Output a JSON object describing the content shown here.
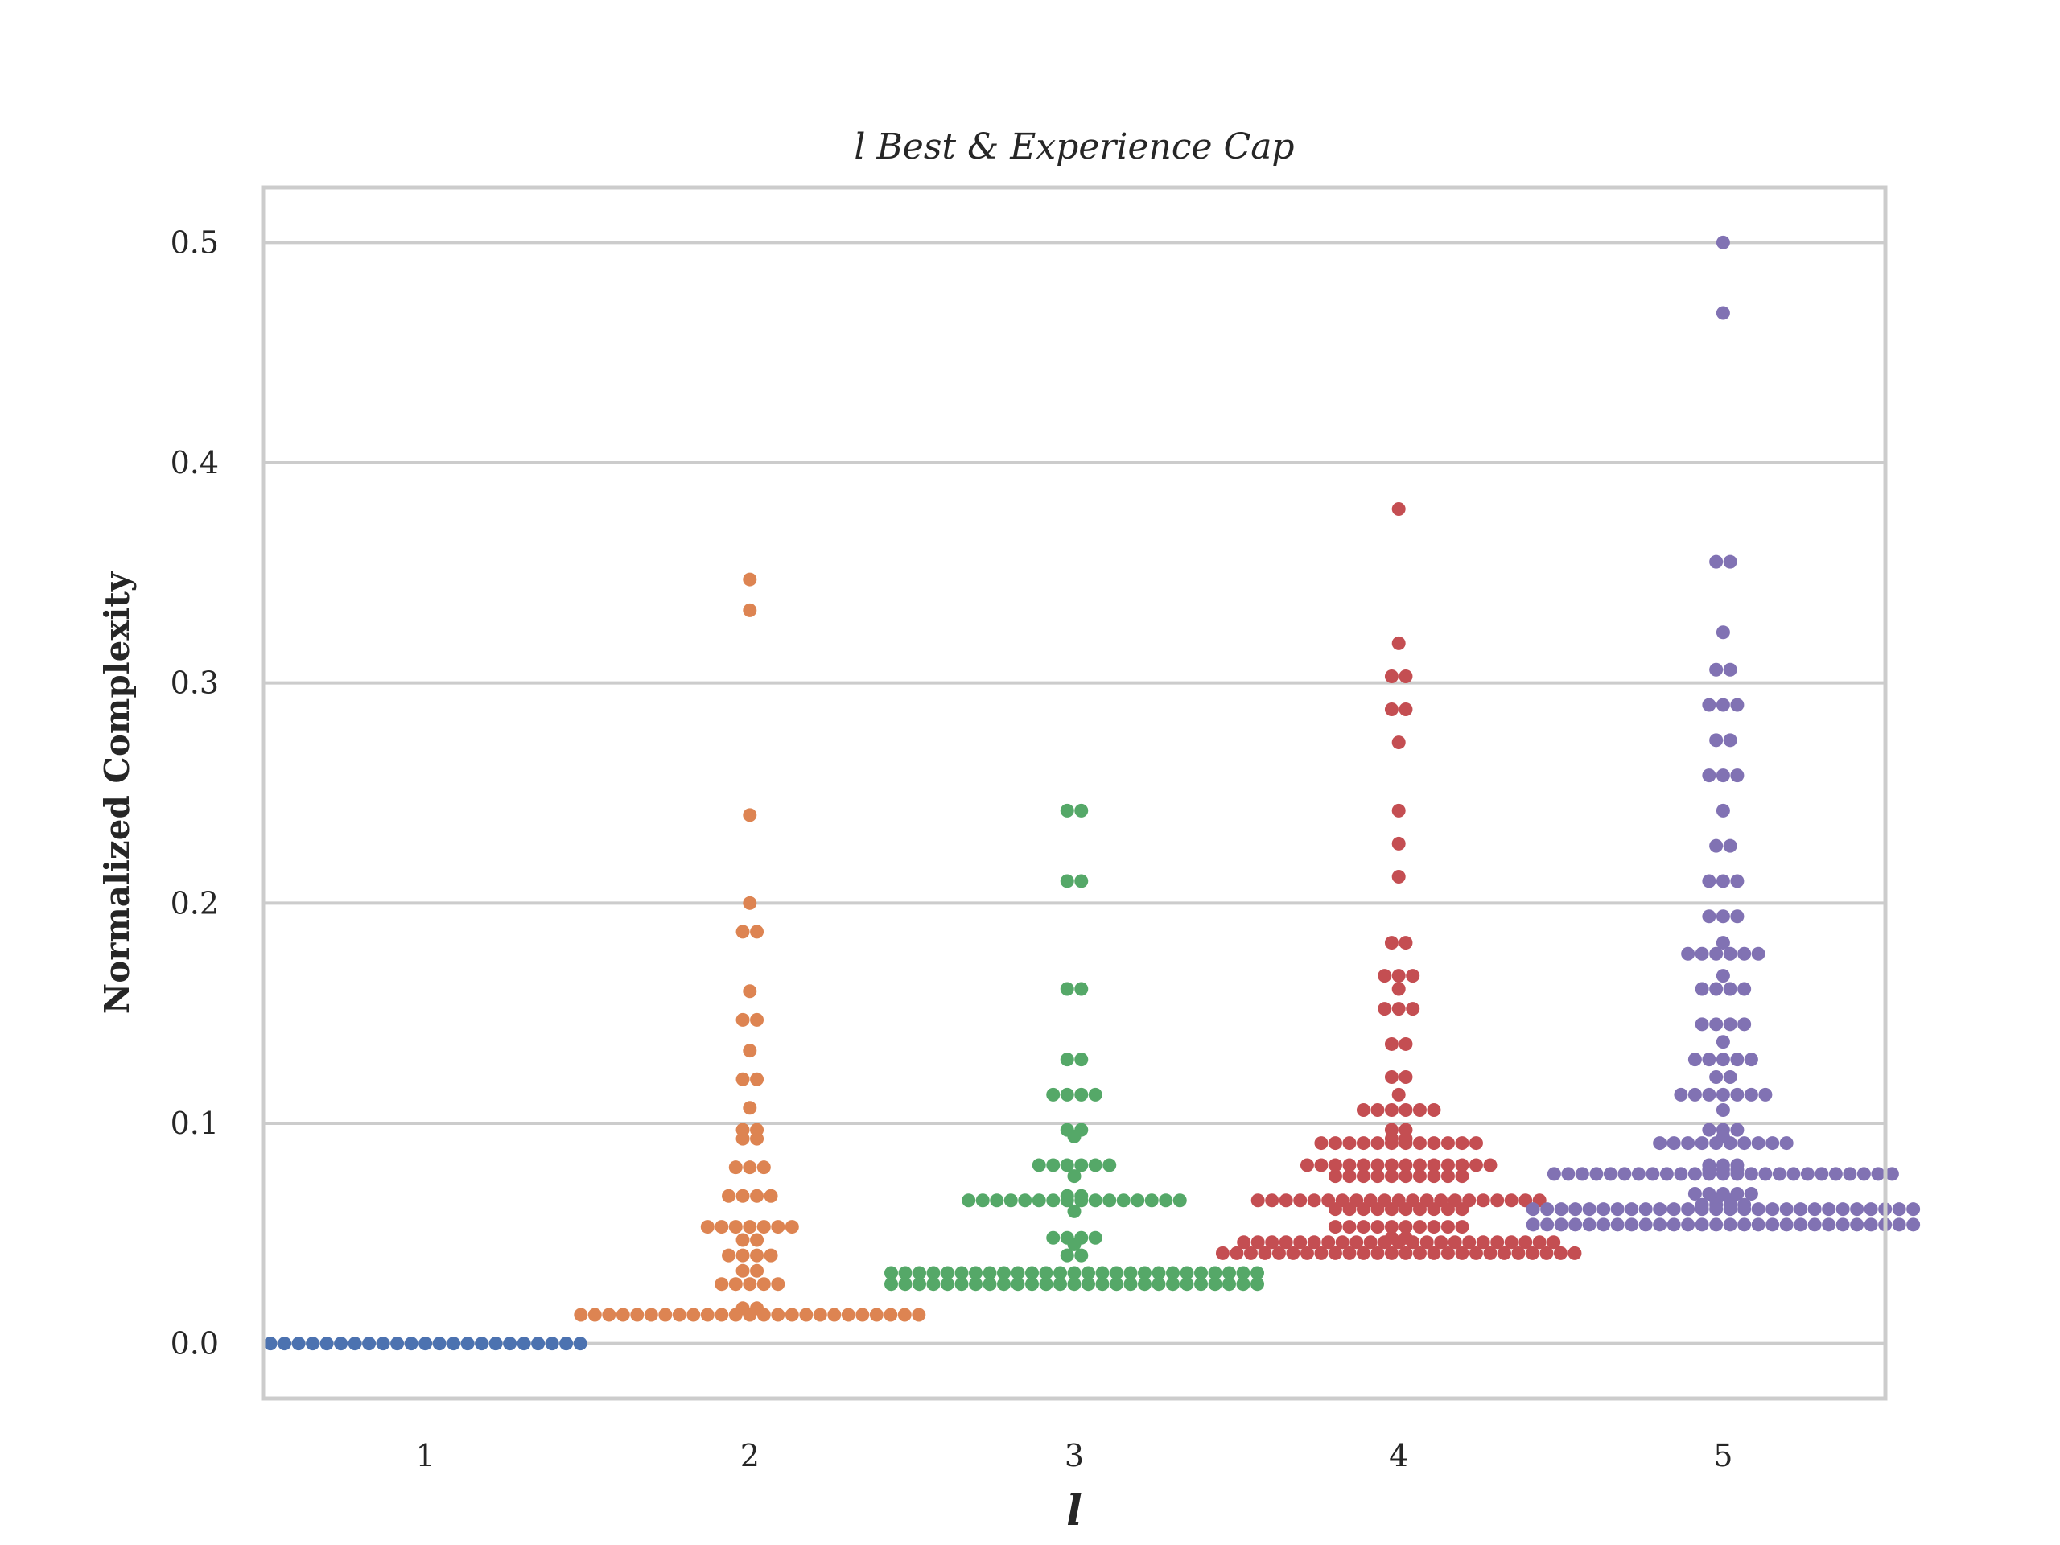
{
  "chart_data": {
    "type": "scatter",
    "subtype": "swarm",
    "title": "l Best & Experience Cap",
    "xlabel": "l",
    "ylabel": "Normalized Complexity",
    "categories": [
      "1",
      "2",
      "3",
      "4",
      "5"
    ],
    "ylim": [
      -0.025,
      0.525
    ],
    "yticks": [
      0.0,
      0.1,
      0.2,
      0.3,
      0.4,
      0.5
    ],
    "ytick_labels": [
      "0.0",
      "0.1",
      "0.2",
      "0.3",
      "0.4",
      "0.5"
    ],
    "grid": true,
    "legend": "none",
    "series": [
      {
        "color": "#4c72b0",
        "values": [
          0,
          0,
          0,
          0,
          0,
          0,
          0,
          0,
          0,
          0,
          0,
          0,
          0,
          0,
          0,
          0,
          0,
          0,
          0,
          0,
          0,
          0,
          0
        ]
      },
      {
        "color": "#dd8452",
        "values": [
          0.347,
          0.333,
          0.24,
          0.2,
          0.187,
          0.187,
          0.16,
          0.147,
          0.147,
          0.133,
          0.12,
          0.12,
          0.107,
          0.097,
          0.097,
          0.093,
          0.093,
          0.08,
          0.08,
          0.08,
          0.067,
          0.067,
          0.067,
          0.067,
          0.053,
          0.053,
          0.053,
          0.053,
          0.053,
          0.053,
          0.053,
          0.047,
          0.047,
          0.04,
          0.04,
          0.04,
          0.04,
          0.033,
          0.033,
          0.027,
          0.027,
          0.027,
          0.027,
          0.027,
          0.013,
          0.013,
          0.013,
          0.013,
          0.013,
          0.013,
          0.013,
          0.013,
          0.013,
          0.013,
          0.013,
          0.013,
          0.013,
          0.013,
          0.013,
          0.013,
          0.013,
          0.013,
          0.013,
          0.013,
          0.013,
          0.013,
          0.013,
          0.013,
          0.013,
          0.016,
          0.016
        ]
      },
      {
        "color": "#55a868",
        "values": [
          0.242,
          0.242,
          0.21,
          0.21,
          0.161,
          0.161,
          0.129,
          0.129,
          0.113,
          0.113,
          0.113,
          0.113,
          0.097,
          0.097,
          0.094,
          0.081,
          0.081,
          0.081,
          0.081,
          0.081,
          0.081,
          0.076,
          0.067,
          0.065,
          0.065,
          0.065,
          0.065,
          0.065,
          0.065,
          0.065,
          0.065,
          0.065,
          0.065,
          0.065,
          0.065,
          0.065,
          0.065,
          0.065,
          0.065,
          0.067,
          0.06,
          0.048,
          0.048,
          0.048,
          0.048,
          0.045,
          0.04,
          0.04,
          0.032,
          0.032,
          0.032,
          0.032,
          0.032,
          0.032,
          0.032,
          0.032,
          0.032,
          0.032,
          0.032,
          0.032,
          0.032,
          0.032,
          0.032,
          0.032,
          0.032,
          0.032,
          0.032,
          0.032,
          0.032,
          0.032,
          0.032,
          0.032,
          0.032,
          0.032,
          0.032,
          0.027,
          0.027,
          0.027,
          0.027,
          0.027,
          0.027,
          0.027,
          0.027,
          0.027,
          0.027,
          0.027,
          0.027,
          0.027,
          0.027,
          0.027,
          0.027,
          0.027,
          0.027,
          0.027,
          0.027,
          0.027,
          0.027,
          0.027,
          0.027,
          0.027,
          0.027,
          0.027
        ]
      },
      {
        "color": "#c44e52",
        "values": [
          0.379,
          0.318,
          0.303,
          0.303,
          0.288,
          0.288,
          0.273,
          0.242,
          0.227,
          0.212,
          0.182,
          0.182,
          0.167,
          0.167,
          0.167,
          0.161,
          0.152,
          0.152,
          0.152,
          0.136,
          0.136,
          0.121,
          0.121,
          0.113,
          0.106,
          0.106,
          0.106,
          0.106,
          0.106,
          0.106,
          0.097,
          0.097,
          0.093,
          0.091,
          0.091,
          0.091,
          0.091,
          0.091,
          0.091,
          0.091,
          0.091,
          0.091,
          0.091,
          0.091,
          0.091,
          0.093,
          0.081,
          0.081,
          0.081,
          0.081,
          0.081,
          0.081,
          0.081,
          0.081,
          0.081,
          0.081,
          0.081,
          0.081,
          0.081,
          0.081,
          0.076,
          0.076,
          0.076,
          0.076,
          0.076,
          0.076,
          0.076,
          0.076,
          0.076,
          0.076,
          0.065,
          0.065,
          0.065,
          0.065,
          0.065,
          0.065,
          0.065,
          0.065,
          0.065,
          0.065,
          0.065,
          0.065,
          0.065,
          0.065,
          0.065,
          0.065,
          0.065,
          0.065,
          0.065,
          0.065,
          0.065,
          0.061,
          0.061,
          0.061,
          0.061,
          0.061,
          0.061,
          0.061,
          0.061,
          0.061,
          0.061,
          0.053,
          0.053,
          0.053,
          0.053,
          0.053,
          0.053,
          0.053,
          0.053,
          0.053,
          0.053,
          0.046,
          0.046,
          0.046,
          0.046,
          0.046,
          0.046,
          0.046,
          0.046,
          0.046,
          0.046,
          0.046,
          0.046,
          0.046,
          0.046,
          0.046,
          0.046,
          0.046,
          0.046,
          0.046,
          0.046,
          0.046,
          0.046,
          0.046,
          0.048,
          0.048,
          0.041,
          0.041,
          0.041,
          0.041,
          0.041,
          0.041,
          0.041,
          0.041,
          0.041,
          0.041,
          0.041,
          0.041,
          0.041,
          0.041,
          0.041,
          0.041,
          0.041,
          0.041,
          0.041,
          0.041,
          0.041,
          0.041,
          0.041,
          0.041,
          0.041,
          0.041
        ]
      },
      {
        "color": "#8172b3",
        "values": [
          0.5,
          0.468,
          0.355,
          0.355,
          0.323,
          0.306,
          0.306,
          0.29,
          0.29,
          0.29,
          0.274,
          0.274,
          0.258,
          0.258,
          0.258,
          0.242,
          0.226,
          0.226,
          0.21,
          0.21,
          0.21,
          0.194,
          0.194,
          0.194,
          0.182,
          0.177,
          0.177,
          0.177,
          0.177,
          0.177,
          0.177,
          0.167,
          0.161,
          0.161,
          0.161,
          0.161,
          0.145,
          0.145,
          0.145,
          0.145,
          0.137,
          0.129,
          0.129,
          0.129,
          0.129,
          0.129,
          0.121,
          0.121,
          0.113,
          0.113,
          0.113,
          0.113,
          0.113,
          0.113,
          0.113,
          0.106,
          0.097,
          0.097,
          0.097,
          0.094,
          0.091,
          0.091,
          0.091,
          0.091,
          0.091,
          0.091,
          0.091,
          0.091,
          0.091,
          0.091,
          0.081,
          0.081,
          0.079,
          0.079,
          0.077,
          0.077,
          0.077,
          0.077,
          0.077,
          0.077,
          0.077,
          0.077,
          0.077,
          0.077,
          0.077,
          0.077,
          0.077,
          0.077,
          0.077,
          0.077,
          0.077,
          0.077,
          0.077,
          0.077,
          0.077,
          0.077,
          0.077,
          0.077,
          0.077,
          0.079,
          0.081,
          0.068,
          0.068,
          0.068,
          0.068,
          0.068,
          0.065,
          0.065,
          0.063,
          0.063,
          0.063,
          0.063,
          0.061,
          0.061,
          0.061,
          0.061,
          0.061,
          0.061,
          0.061,
          0.061,
          0.061,
          0.061,
          0.061,
          0.061,
          0.061,
          0.061,
          0.061,
          0.061,
          0.061,
          0.061,
          0.061,
          0.061,
          0.061,
          0.061,
          0.061,
          0.061,
          0.061,
          0.061,
          0.061,
          0.061,
          0.054,
          0.054,
          0.054,
          0.054,
          0.054,
          0.054,
          0.054,
          0.054,
          0.054,
          0.054,
          0.054,
          0.054,
          0.054,
          0.054,
          0.054,
          0.054,
          0.054,
          0.054,
          0.054,
          0.054,
          0.054,
          0.054,
          0.054,
          0.054,
          0.054,
          0.054,
          0.054,
          0.054
        ]
      }
    ]
  }
}
